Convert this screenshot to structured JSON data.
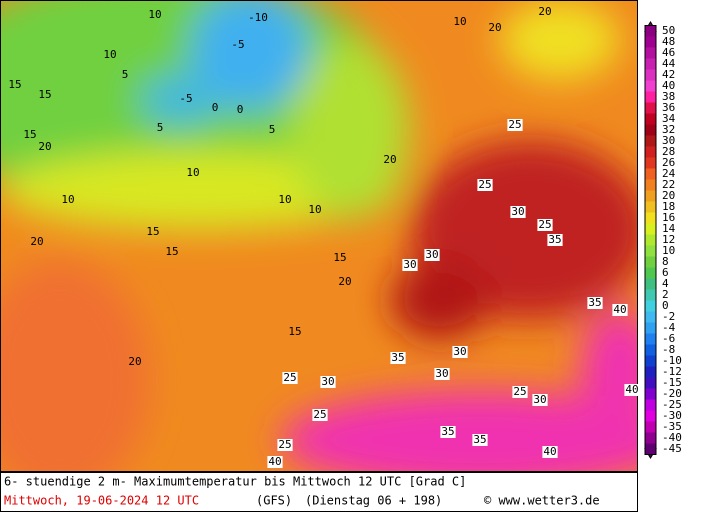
{
  "map_labels": [
    "-10",
    "-5",
    "-5",
    "0",
    "0",
    "5",
    "5",
    "5",
    "10",
    "10",
    "10",
    "10",
    "10",
    "10",
    "10",
    "15",
    "15",
    "15",
    "15",
    "15",
    "15",
    "15",
    "20",
    "20",
    "20",
    "20",
    "20",
    "20",
    "20",
    "25",
    "25",
    "25",
    "25",
    "25",
    "25",
    "25",
    "30",
    "30",
    "30",
    "30",
    "30",
    "30",
    "30",
    "35",
    "35",
    "35",
    "35",
    "35",
    "40",
    "40",
    "40",
    "40"
  ],
  "colorbar": {
    "labels": [
      "50",
      "48",
      "46",
      "44",
      "42",
      "40",
      "38",
      "36",
      "34",
      "32",
      "30",
      "28",
      "26",
      "24",
      "22",
      "20",
      "18",
      "16",
      "14",
      "12",
      "10",
      "8",
      "6",
      "4",
      "2",
      "0",
      "-2",
      "-4",
      "-6",
      "-8",
      "-10",
      "-12",
      "-15",
      "-20",
      "-25",
      "-30",
      "-35",
      "-40",
      "-45"
    ],
    "colors": [
      "#8b0080",
      "#a0008f",
      "#b4109f",
      "#c820b0",
      "#dc30c0",
      "#f040d0",
      "#ff20a0",
      "#e0104a",
      "#c00020",
      "#a00018",
      "#b01818",
      "#d02020",
      "#e03820",
      "#f06020",
      "#f08020",
      "#f0a020",
      "#f0c020",
      "#f0e020",
      "#d8f020",
      "#b0e830",
      "#90e040",
      "#70d040",
      "#50c850",
      "#40c080",
      "#40c8b0",
      "#40d0e0",
      "#40b8f0",
      "#30a0f0",
      "#2080f0",
      "#1060e0",
      "#1040d0",
      "#2020c0",
      "#4010c0",
      "#8000d0",
      "#c000e0",
      "#e000e0",
      "#c000b0",
      "#900090",
      "#600070"
    ]
  },
  "footer": {
    "line1": "6- stuendige 2 m- Maximumtemperatur bis Mittwoch 12 UTC [Grad C]",
    "date": "Mittwoch, 19-06-2024  12 UTC",
    "model": "(GFS)",
    "run": "(Dienstag 06 + 198)",
    "credit": "© www.wetter3.de"
  }
}
